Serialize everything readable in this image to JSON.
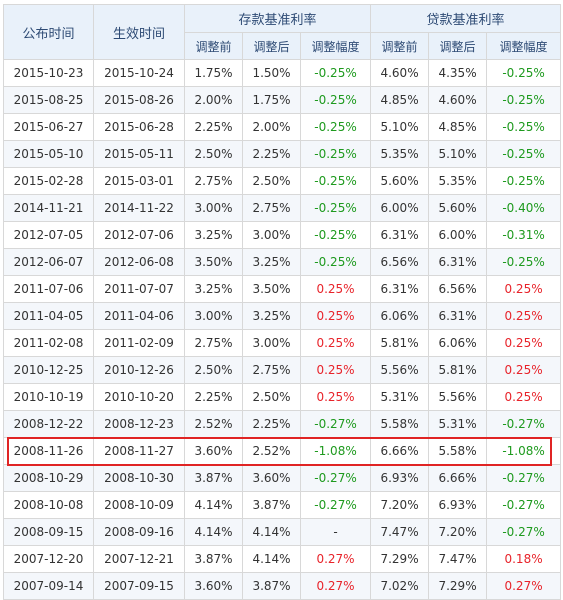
{
  "headers": {
    "announce_date": "公布时间",
    "effective_date": "生效时间",
    "deposit_group": "存款基准利率",
    "loan_group": "贷款基准利率",
    "before": "调整前",
    "after": "调整后",
    "change": "调整幅度"
  },
  "rows": [
    {
      "announce": "2015-10-23",
      "effective": "2015-10-24",
      "dep_before": "1.75%",
      "dep_after": "1.50%",
      "dep_change": "-0.25%",
      "loan_before": "4.60%",
      "loan_after": "4.35%",
      "loan_change": "-0.25%"
    },
    {
      "announce": "2015-08-25",
      "effective": "2015-08-26",
      "dep_before": "2.00%",
      "dep_after": "1.75%",
      "dep_change": "-0.25%",
      "loan_before": "4.85%",
      "loan_after": "4.60%",
      "loan_change": "-0.25%"
    },
    {
      "announce": "2015-06-27",
      "effective": "2015-06-28",
      "dep_before": "2.25%",
      "dep_after": "2.00%",
      "dep_change": "-0.25%",
      "loan_before": "5.10%",
      "loan_after": "4.85%",
      "loan_change": "-0.25%"
    },
    {
      "announce": "2015-05-10",
      "effective": "2015-05-11",
      "dep_before": "2.50%",
      "dep_after": "2.25%",
      "dep_change": "-0.25%",
      "loan_before": "5.35%",
      "loan_after": "5.10%",
      "loan_change": "-0.25%"
    },
    {
      "announce": "2015-02-28",
      "effective": "2015-03-01",
      "dep_before": "2.75%",
      "dep_after": "2.50%",
      "dep_change": "-0.25%",
      "loan_before": "5.60%",
      "loan_after": "5.35%",
      "loan_change": "-0.25%"
    },
    {
      "announce": "2014-11-21",
      "effective": "2014-11-22",
      "dep_before": "3.00%",
      "dep_after": "2.75%",
      "dep_change": "-0.25%",
      "loan_before": "6.00%",
      "loan_after": "5.60%",
      "loan_change": "-0.40%"
    },
    {
      "announce": "2012-07-05",
      "effective": "2012-07-06",
      "dep_before": "3.25%",
      "dep_after": "3.00%",
      "dep_change": "-0.25%",
      "loan_before": "6.31%",
      "loan_after": "6.00%",
      "loan_change": "-0.31%"
    },
    {
      "announce": "2012-06-07",
      "effective": "2012-06-08",
      "dep_before": "3.50%",
      "dep_after": "3.25%",
      "dep_change": "-0.25%",
      "loan_before": "6.56%",
      "loan_after": "6.31%",
      "loan_change": "-0.25%"
    },
    {
      "announce": "2011-07-06",
      "effective": "2011-07-07",
      "dep_before": "3.25%",
      "dep_after": "3.50%",
      "dep_change": "0.25%",
      "loan_before": "6.31%",
      "loan_after": "6.56%",
      "loan_change": "0.25%"
    },
    {
      "announce": "2011-04-05",
      "effective": "2011-04-06",
      "dep_before": "3.00%",
      "dep_after": "3.25%",
      "dep_change": "0.25%",
      "loan_before": "6.06%",
      "loan_after": "6.31%",
      "loan_change": "0.25%"
    },
    {
      "announce": "2011-02-08",
      "effective": "2011-02-09",
      "dep_before": "2.75%",
      "dep_after": "3.00%",
      "dep_change": "0.25%",
      "loan_before": "5.81%",
      "loan_after": "6.06%",
      "loan_change": "0.25%"
    },
    {
      "announce": "2010-12-25",
      "effective": "2010-12-26",
      "dep_before": "2.50%",
      "dep_after": "2.75%",
      "dep_change": "0.25%",
      "loan_before": "5.56%",
      "loan_after": "5.81%",
      "loan_change": "0.25%"
    },
    {
      "announce": "2010-10-19",
      "effective": "2010-10-20",
      "dep_before": "2.25%",
      "dep_after": "2.50%",
      "dep_change": "0.25%",
      "loan_before": "5.31%",
      "loan_after": "5.56%",
      "loan_change": "0.25%"
    },
    {
      "announce": "2008-12-22",
      "effective": "2008-12-23",
      "dep_before": "2.52%",
      "dep_after": "2.25%",
      "dep_change": "-0.27%",
      "loan_before": "5.58%",
      "loan_after": "5.31%",
      "loan_change": "-0.27%"
    },
    {
      "announce": "2008-11-26",
      "effective": "2008-11-27",
      "dep_before": "3.60%",
      "dep_after": "2.52%",
      "dep_change": "-1.08%",
      "loan_before": "6.66%",
      "loan_after": "5.58%",
      "loan_change": "-1.08%",
      "highlighted": true
    },
    {
      "announce": "2008-10-29",
      "effective": "2008-10-30",
      "dep_before": "3.87%",
      "dep_after": "3.60%",
      "dep_change": "-0.27%",
      "loan_before": "6.93%",
      "loan_after": "6.66%",
      "loan_change": "-0.27%"
    },
    {
      "announce": "2008-10-08",
      "effective": "2008-10-09",
      "dep_before": "4.14%",
      "dep_after": "3.87%",
      "dep_change": "-0.27%",
      "loan_before": "7.20%",
      "loan_after": "6.93%",
      "loan_change": "-0.27%"
    },
    {
      "announce": "2008-09-15",
      "effective": "2008-09-16",
      "dep_before": "4.14%",
      "dep_after": "4.14%",
      "dep_change": "-",
      "loan_before": "7.47%",
      "loan_after": "7.20%",
      "loan_change": "-0.27%"
    },
    {
      "announce": "2007-12-20",
      "effective": "2007-12-21",
      "dep_before": "3.87%",
      "dep_after": "4.14%",
      "dep_change": "0.27%",
      "loan_before": "7.29%",
      "loan_after": "7.47%",
      "loan_change": "0.18%"
    },
    {
      "announce": "2007-09-14",
      "effective": "2007-09-15",
      "dep_before": "3.60%",
      "dep_after": "3.87%",
      "dep_change": "0.27%",
      "loan_before": "7.02%",
      "loan_after": "7.29%",
      "loan_change": "0.27%"
    }
  ],
  "colors": {
    "decrease": "#1e9a1e",
    "increase": "#e8232a",
    "header_bg": "#e9f1fa",
    "highlight_border": "#e02424"
  }
}
